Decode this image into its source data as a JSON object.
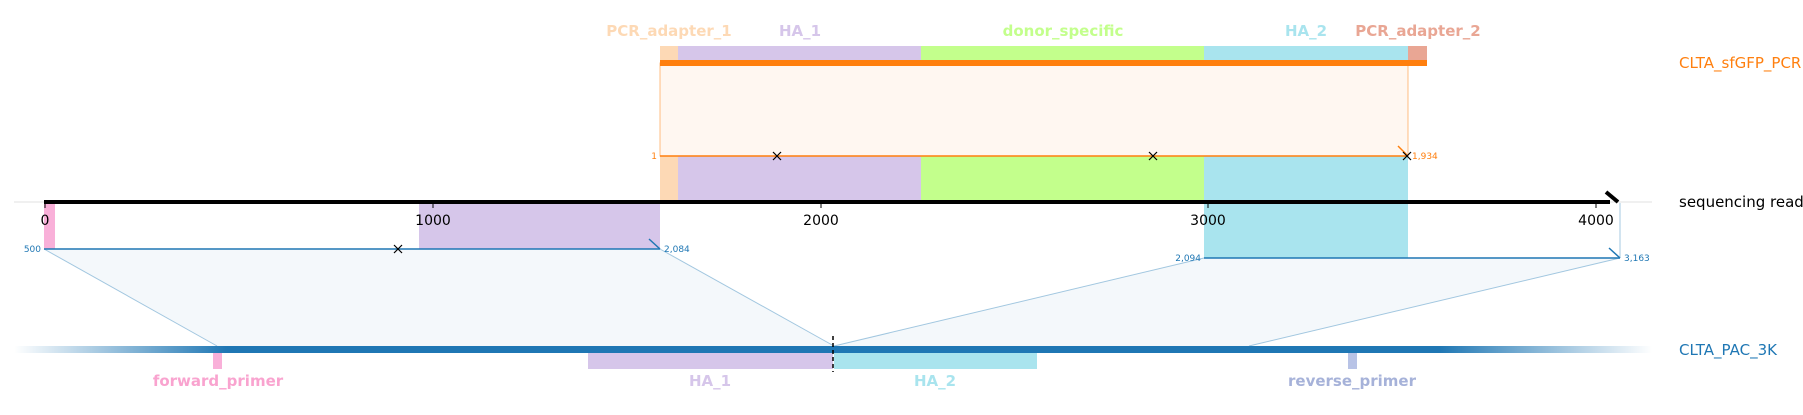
{
  "read": {
    "label": "sequencing read",
    "axis_ticks": [
      "0",
      "1000",
      "2000",
      "3000",
      "4000"
    ],
    "color": "#000000"
  },
  "donor_track": {
    "label": "CLTA_sfGFP_PCR",
    "color": "#ff7f0e",
    "start_label": "1",
    "end_label": "1,934",
    "features": [
      {
        "name": "PCR_adapter_1",
        "color": "#fdd9b5"
      },
      {
        "name": "HA_1",
        "color": "#d6c6ea"
      },
      {
        "name": "donor_specific",
        "color": "#c3ff8c"
      },
      {
        "name": "HA_2",
        "color": "#a9e4ee"
      },
      {
        "name": "PCR_adapter_2",
        "color": "#e9a694"
      }
    ]
  },
  "target_track": {
    "label": "CLTA_PAC_3K",
    "color": "#1f77b4",
    "left_alignment": {
      "start_label": "500",
      "end_label": "2,084"
    },
    "right_alignment": {
      "start_label": "2,094",
      "end_label": "3,163"
    },
    "features": [
      {
        "name": "forward_primer",
        "color": "#f9b0d9"
      },
      {
        "name": "HA_1",
        "color": "#d6c6ea"
      },
      {
        "name": "HA_2",
        "color": "#a9e4ee"
      },
      {
        "name": "reverse_primer",
        "color": "#b8c3e6"
      }
    ]
  }
}
